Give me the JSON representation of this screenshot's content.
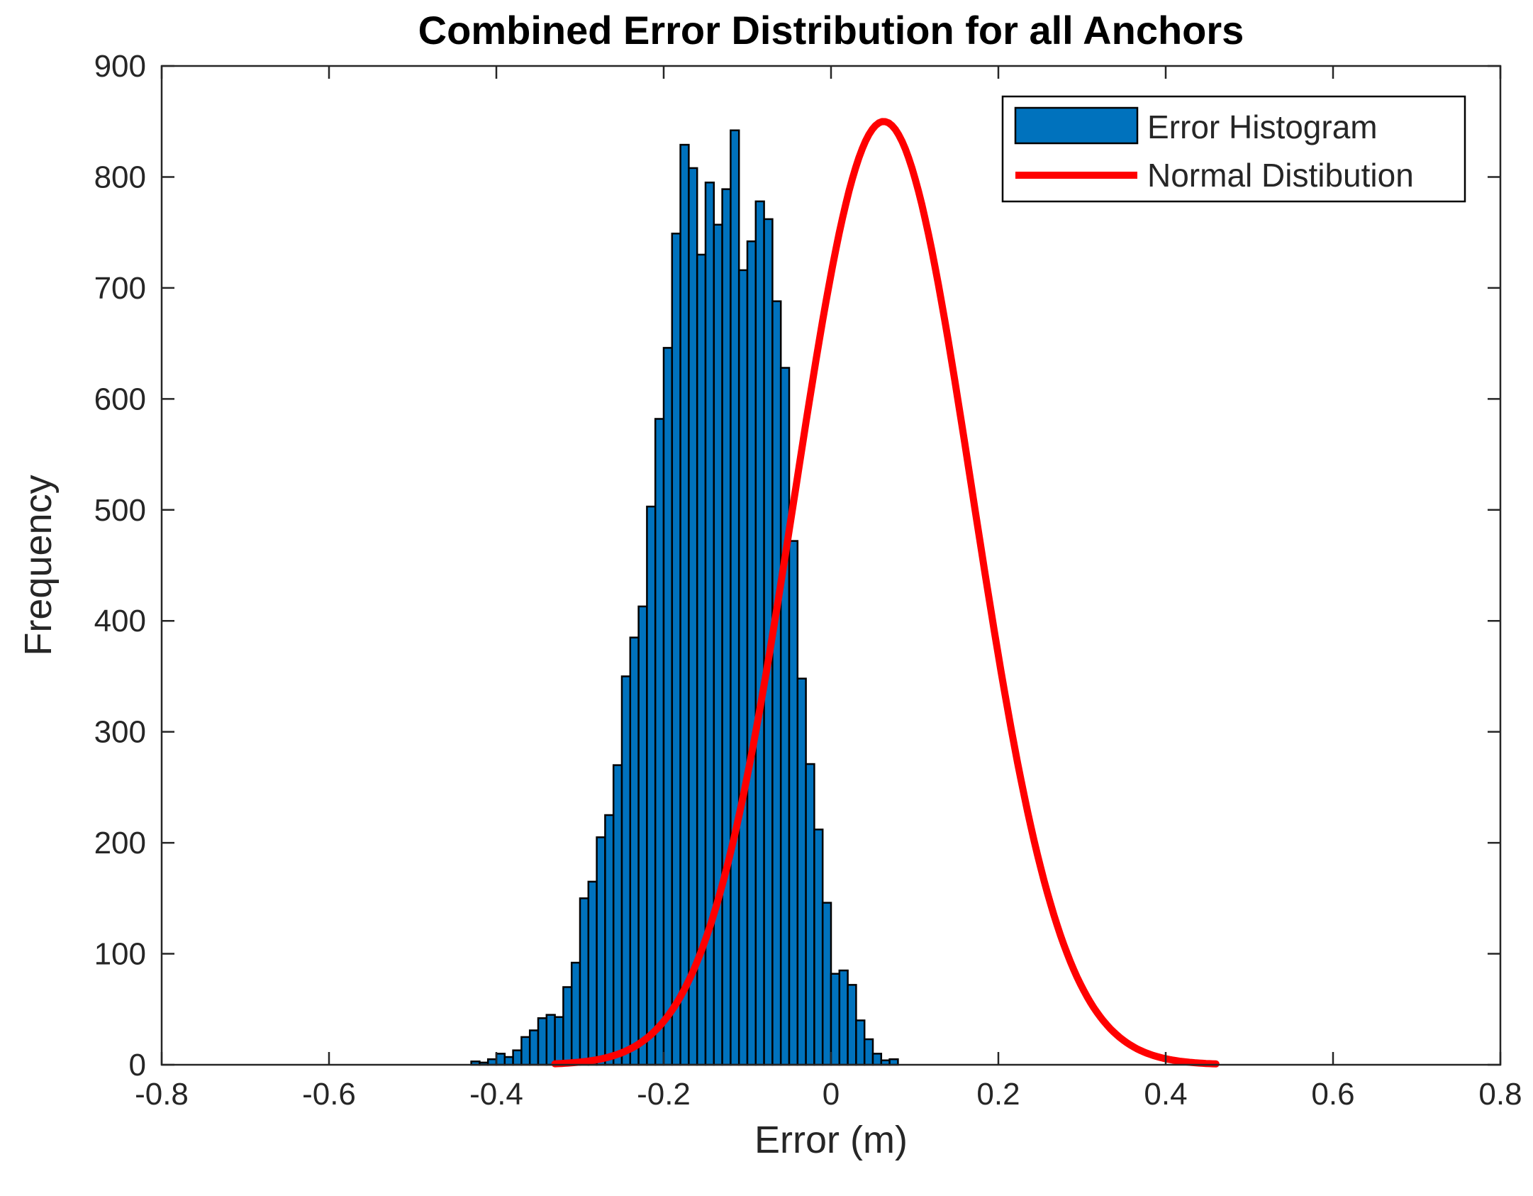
{
  "chart_data": {
    "type": "bar",
    "title": "Combined Error Distribution for all Anchors",
    "xlabel": "Error (m)",
    "ylabel": "Frequency",
    "xlim": [
      -0.8,
      0.8
    ],
    "ylim": [
      0,
      900
    ],
    "xticks": [
      "-0.8",
      "-0.6",
      "-0.4",
      "-0.2",
      "0",
      "0.2",
      "0.4",
      "0.6",
      "0.8"
    ],
    "yticks": [
      "0",
      "100",
      "200",
      "300",
      "400",
      "500",
      "600",
      "700",
      "800",
      "900"
    ],
    "grid": false,
    "legend_position": "top-right",
    "bin_width": 0.01,
    "bar_color": "#0072BD",
    "line_color": "#FF0000",
    "histogram": {
      "name": "Error Histogram",
      "bin_start": -0.43,
      "counts": [
        3,
        2,
        5,
        10,
        7,
        13,
        25,
        31,
        42,
        45,
        43,
        70,
        92,
        150,
        165,
        205,
        225,
        270,
        350,
        385,
        413,
        503,
        582,
        646,
        749,
        829,
        808,
        730,
        795,
        757,
        789,
        842,
        716,
        742,
        778,
        762,
        688,
        628,
        472,
        348,
        271,
        212,
        146,
        82,
        85,
        72,
        40,
        23,
        10,
        4,
        5
      ]
    },
    "normal": {
      "name": "Normal Distibution",
      "mean": 0.063,
      "std": 0.106,
      "peak": 850,
      "x_range": [
        -0.33,
        0.46
      ]
    }
  }
}
